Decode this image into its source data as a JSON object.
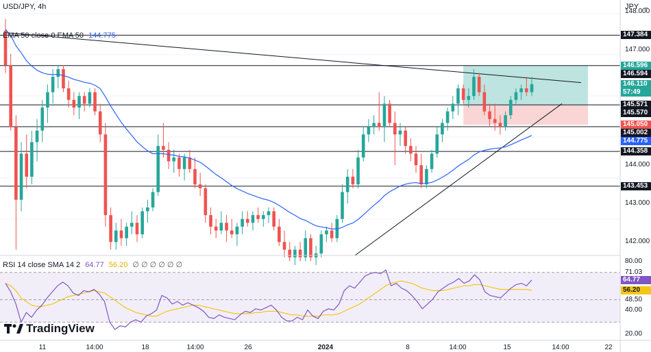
{
  "header": {
    "symbol": "USD/JPY, 4h",
    "currency": "JPY",
    "ema_label": "EMA 50 close 0 EMA 50",
    "ema_value": "144.775",
    "rsi_label": "RSI 14 close SMA 14 2",
    "rsi_value": "64.77",
    "rsi_sma_value": "56.20",
    "rsi_extra": "∅ ∅ ∅ ∅ ∅ ∅"
  },
  "brand": {
    "name": "TradingView"
  },
  "colors": {
    "up": "#26a69a",
    "down": "#ef5350",
    "ema": "#2962ff",
    "rsi": "#7e57c2",
    "rsi_sma": "#f5c518",
    "level": "#131722",
    "tp_zone": "#b2dfdb",
    "sl_zone": "#f8d0d0"
  },
  "price_axis": {
    "ticks": [
      "148.000",
      "147.000",
      "145.000",
      "144.000",
      "143.000",
      "142.000"
    ],
    "labels": [
      {
        "text": "147.384",
        "style": "dark"
      },
      {
        "text": "146.596",
        "style": "green"
      },
      {
        "text": "146.594",
        "style": "dark"
      },
      {
        "text": "146.110",
        "style": "green"
      },
      {
        "text": "57:49",
        "style": "green-sub"
      },
      {
        "text": "145.571",
        "style": "dark"
      },
      {
        "text": "145.570",
        "style": "dark"
      },
      {
        "text": "145.050",
        "style": "red"
      },
      {
        "text": "145.002",
        "style": "dark"
      },
      {
        "text": "144.775",
        "style": "blue"
      },
      {
        "text": "144.358",
        "style": "dark"
      },
      {
        "text": "143.453",
        "style": "dark"
      }
    ]
  },
  "rsi_axis": {
    "ticks": [
      "80.00",
      "71.03",
      "48.50",
      "40.00",
      "20.00"
    ],
    "labels": [
      {
        "text": "64.77",
        "style": "purple"
      },
      {
        "text": "56.20",
        "style": "yellow"
      }
    ]
  },
  "time_axis": [
    "11",
    "14:00",
    "18",
    "14:00",
    "26",
    "2024",
    "8",
    "14:00",
    "15",
    "14:00",
    "22"
  ],
  "chart_data": [
    {
      "type": "candlestick",
      "title": "USD/JPY, 4h",
      "ylim": [
        141.65,
        148.3
      ],
      "horizontal_levels": [
        147.384,
        146.594,
        145.571,
        145.002,
        144.358,
        143.453
      ],
      "zones": {
        "take_profit": [
          145.571,
          146.596
        ],
        "stop_loss": [
          145.05,
          145.571
        ]
      },
      "ema50_last": 144.775,
      "last_price": 146.11,
      "candles": [
        [
          147.5,
          147.8,
          146.4,
          146.6
        ],
        [
          146.6,
          146.9,
          144.9,
          145.0
        ],
        [
          145.0,
          145.3,
          141.8,
          143.1
        ],
        [
          143.1,
          144.6,
          142.8,
          144.3
        ],
        [
          144.3,
          144.8,
          143.4,
          143.7
        ],
        [
          143.7,
          144.9,
          143.5,
          144.6
        ],
        [
          144.6,
          145.2,
          144.1,
          144.9
        ],
        [
          144.9,
          145.7,
          144.6,
          145.5
        ],
        [
          145.5,
          146.1,
          145.1,
          145.9
        ],
        [
          145.9,
          146.5,
          145.6,
          146.3
        ],
        [
          146.3,
          146.6,
          146.0,
          146.5
        ],
        [
          146.5,
          146.6,
          145.9,
          146.0
        ],
        [
          146.0,
          146.2,
          145.5,
          145.7
        ],
        [
          145.7,
          145.9,
          145.3,
          145.5
        ],
        [
          145.5,
          145.9,
          145.2,
          145.8
        ],
        [
          145.8,
          145.9,
          145.4,
          145.6
        ],
        [
          145.6,
          146.0,
          145.5,
          145.9
        ],
        [
          145.9,
          146.0,
          145.3,
          145.4
        ],
        [
          145.4,
          145.6,
          144.6,
          144.8
        ],
        [
          144.8,
          145.1,
          142.4,
          142.7
        ],
        [
          142.7,
          142.9,
          141.8,
          142.0
        ],
        [
          142.0,
          142.5,
          141.8,
          142.3
        ],
        [
          142.3,
          142.6,
          141.9,
          142.1
        ],
        [
          142.1,
          142.5,
          141.9,
          142.4
        ],
        [
          142.4,
          142.8,
          142.2,
          142.5
        ],
        [
          142.5,
          142.7,
          142.0,
          142.2
        ],
        [
          142.2,
          142.9,
          142.1,
          142.8
        ],
        [
          142.8,
          143.1,
          142.5,
          142.9
        ],
        [
          142.9,
          143.4,
          142.8,
          143.3
        ],
        [
          143.3,
          144.8,
          143.2,
          144.5
        ],
        [
          144.5,
          145.1,
          144.2,
          144.4
        ],
        [
          144.4,
          144.6,
          143.9,
          144.1
        ],
        [
          144.1,
          144.4,
          143.8,
          144.2
        ],
        [
          144.2,
          144.3,
          143.7,
          143.9
        ],
        [
          143.9,
          144.3,
          143.6,
          144.2
        ],
        [
          144.2,
          144.4,
          143.8,
          143.9
        ],
        [
          143.9,
          144.2,
          143.4,
          143.5
        ],
        [
          143.5,
          143.8,
          143.2,
          143.4
        ],
        [
          143.4,
          143.5,
          142.5,
          142.7
        ],
        [
          142.7,
          142.9,
          142.2,
          142.4
        ],
        [
          142.4,
          142.6,
          142.1,
          142.3
        ],
        [
          142.3,
          142.8,
          142.2,
          142.5
        ],
        [
          142.5,
          142.7,
          142.0,
          142.3
        ],
        [
          142.3,
          142.6,
          142.1,
          142.2
        ],
        [
          142.2,
          142.5,
          141.9,
          142.4
        ],
        [
          142.4,
          142.8,
          142.2,
          142.6
        ],
        [
          142.6,
          142.8,
          142.4,
          142.5
        ],
        [
          142.5,
          142.8,
          142.3,
          142.7
        ],
        [
          142.7,
          142.9,
          142.5,
          142.6
        ],
        [
          142.6,
          142.8,
          142.4,
          142.7
        ],
        [
          142.7,
          142.9,
          142.5,
          142.8
        ],
        [
          142.8,
          142.9,
          142.3,
          142.4
        ],
        [
          142.4,
          142.6,
          141.9,
          142.0
        ],
        [
          142.0,
          142.3,
          141.6,
          141.8
        ],
        [
          141.8,
          142.0,
          141.5,
          141.6
        ],
        [
          141.6,
          141.9,
          141.4,
          141.8
        ],
        [
          141.8,
          142.0,
          141.5,
          141.6
        ],
        [
          141.6,
          142.3,
          141.5,
          142.1
        ],
        [
          142.1,
          142.2,
          141.5,
          141.6
        ],
        [
          141.6,
          141.9,
          141.4,
          141.7
        ],
        [
          141.7,
          142.3,
          141.6,
          142.2
        ],
        [
          142.2,
          142.4,
          142.0,
          142.3
        ],
        [
          142.3,
          142.5,
          142.0,
          142.1
        ],
        [
          142.1,
          142.7,
          142.0,
          142.6
        ],
        [
          142.6,
          143.5,
          142.5,
          143.3
        ],
        [
          143.3,
          143.9,
          143.0,
          143.7
        ],
        [
          143.7,
          143.9,
          143.4,
          143.5
        ],
        [
          143.5,
          144.4,
          143.4,
          144.2
        ],
        [
          144.2,
          145.0,
          144.1,
          144.8
        ],
        [
          144.8,
          145.2,
          144.6,
          145.0
        ],
        [
          145.0,
          145.3,
          144.8,
          145.1
        ],
        [
          145.1,
          145.9,
          144.9,
          145.0
        ],
        [
          145.0,
          145.8,
          144.6,
          145.6
        ],
        [
          145.6,
          145.7,
          145.0,
          145.1
        ],
        [
          145.1,
          145.4,
          144.0,
          144.8
        ],
        [
          144.8,
          145.1,
          144.5,
          144.9
        ],
        [
          144.9,
          145.0,
          144.3,
          144.5
        ],
        [
          144.5,
          144.7,
          144.1,
          144.3
        ],
        [
          144.3,
          144.5,
          143.8,
          144.0
        ],
        [
          144.0,
          144.3,
          143.4,
          143.5
        ],
        [
          143.5,
          144.0,
          143.4,
          143.9
        ],
        [
          143.9,
          144.4,
          143.8,
          144.3
        ],
        [
          144.3,
          145.0,
          144.2,
          144.8
        ],
        [
          144.8,
          145.2,
          144.6,
          145.1
        ],
        [
          145.1,
          145.5,
          144.9,
          145.4
        ],
        [
          145.4,
          145.8,
          145.2,
          145.6
        ],
        [
          145.6,
          146.1,
          145.3,
          146.0
        ],
        [
          146.0,
          146.1,
          145.6,
          145.7
        ],
        [
          145.7,
          146.0,
          145.5,
          145.8
        ],
        [
          145.8,
          146.5,
          145.7,
          146.3
        ],
        [
          146.3,
          146.4,
          145.8,
          145.9
        ],
        [
          145.9,
          146.1,
          145.3,
          145.4
        ],
        [
          145.4,
          145.6,
          145.0,
          145.2
        ],
        [
          145.2,
          145.6,
          144.9,
          145.1
        ],
        [
          145.1,
          145.3,
          144.8,
          145.0
        ],
        [
          145.0,
          145.4,
          144.9,
          145.3
        ],
        [
          145.3,
          145.8,
          145.2,
          145.7
        ],
        [
          145.7,
          146.0,
          145.6,
          145.9
        ],
        [
          145.9,
          146.1,
          145.7,
          146.0
        ],
        [
          146.0,
          146.3,
          145.8,
          145.9
        ],
        [
          145.9,
          146.3,
          145.8,
          146.11
        ]
      ]
    },
    {
      "type": "line",
      "title": "RSI 14 close SMA 14 2",
      "ylim": [
        15,
        85
      ],
      "bands": [
        71.03,
        48.5,
        30.0
      ],
      "series": [
        {
          "name": "RSI",
          "last": 64.77,
          "values": [
            62,
            55,
            45,
            30,
            38,
            34,
            40,
            44,
            50,
            55,
            60,
            63,
            60,
            54,
            52,
            56,
            55,
            57,
            53,
            47,
            30,
            24,
            27,
            26,
            30,
            32,
            30,
            35,
            37,
            40,
            52,
            50,
            45,
            47,
            44,
            46,
            44,
            42,
            39,
            34,
            33,
            36,
            34,
            33,
            32,
            36,
            39,
            38,
            41,
            40,
            42,
            44,
            40,
            34,
            31,
            31,
            34,
            32,
            40,
            35,
            33,
            39,
            41,
            40,
            45,
            56,
            60,
            58,
            63,
            68,
            70,
            71,
            70,
            73,
            60,
            62,
            58,
            56,
            52,
            47,
            41,
            45,
            49,
            55,
            58,
            61,
            63,
            66,
            62,
            64,
            69,
            65,
            55,
            52,
            51,
            50,
            54,
            58,
            61,
            62,
            60,
            64.77
          ]
        },
        {
          "name": "SMA",
          "last": 56.2,
          "values": [
            62,
            60,
            56,
            50,
            47,
            44,
            43,
            43,
            44,
            45,
            47,
            49,
            51,
            52,
            53,
            54,
            55,
            56,
            55,
            54,
            51,
            48,
            45,
            42,
            40,
            38,
            37,
            36,
            35,
            35,
            37,
            39,
            40,
            41,
            42,
            43,
            44,
            44,
            43,
            42,
            41,
            40,
            39,
            38,
            37,
            37,
            37,
            37,
            38,
            38,
            39,
            39,
            39,
            38,
            37,
            36,
            36,
            35,
            35,
            35,
            35,
            36,
            36,
            36,
            37,
            39,
            41,
            43,
            45,
            48,
            51,
            54,
            57,
            60,
            62,
            63,
            64,
            63,
            62,
            60,
            58,
            57,
            56,
            56,
            56,
            57,
            58,
            59,
            60,
            60,
            61,
            61,
            60,
            59,
            58,
            57,
            57,
            57,
            57,
            57,
            57,
            56.2
          ]
        }
      ]
    }
  ]
}
